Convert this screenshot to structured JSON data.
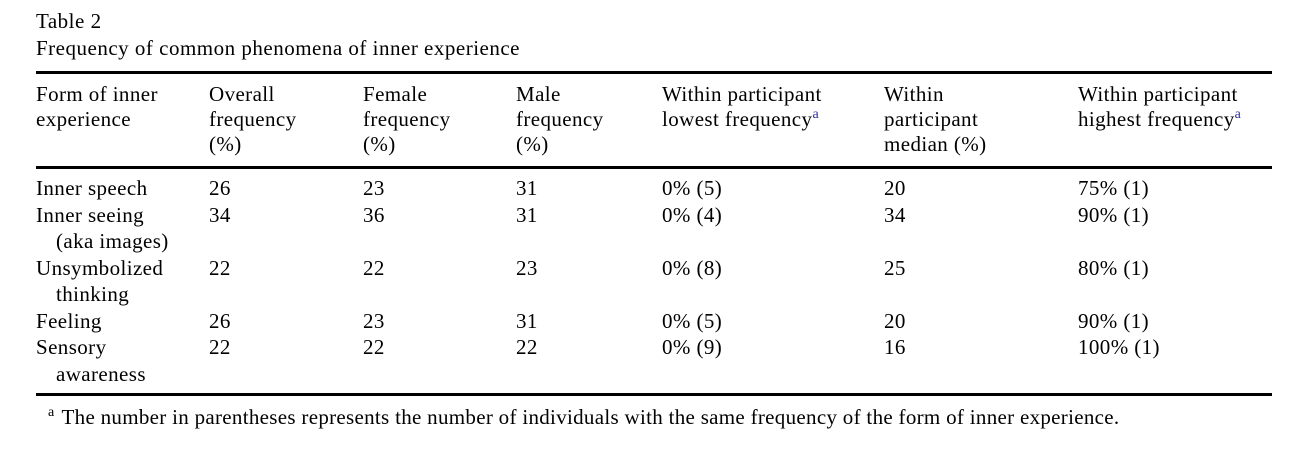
{
  "table": {
    "title": "Table 2",
    "caption": "Frequency of common phenomena of inner experience",
    "headers": [
      {
        "text": "Form of inner\nexperience",
        "sup": ""
      },
      {
        "text": "Overall\nfrequency\n(%)",
        "sup": ""
      },
      {
        "text": "Female\nfrequency\n(%)",
        "sup": ""
      },
      {
        "text": "Male\nfrequency\n(%)",
        "sup": ""
      },
      {
        "text": "Within participant\nlowest frequency",
        "sup": "a"
      },
      {
        "text": "Within\nparticipant\nmedian (%)",
        "sup": ""
      },
      {
        "text": "Within participant\nhighest frequency",
        "sup": "a"
      }
    ],
    "rows": [
      {
        "form_line1": "Inner speech",
        "form_line2": "",
        "cells": [
          "26",
          "23",
          "31",
          "0% (5)",
          "20",
          "75% (1)"
        ]
      },
      {
        "form_line1": "Inner seeing",
        "form_line2": "(aka images)",
        "cells": [
          "34",
          "36",
          "31",
          "0% (4)",
          "34",
          "90% (1)"
        ]
      },
      {
        "form_line1": "Unsymbolized",
        "form_line2": "thinking",
        "cells": [
          "22",
          "22",
          "23",
          "0% (8)",
          "25",
          "80% (1)"
        ]
      },
      {
        "form_line1": "Feeling",
        "form_line2": "",
        "cells": [
          "26",
          "23",
          "31",
          "0% (5)",
          "20",
          "90% (1)"
        ]
      },
      {
        "form_line1": "Sensory",
        "form_line2": "awareness",
        "cells": [
          "22",
          "22",
          "22",
          "0% (9)",
          "16",
          "100% (1)"
        ]
      }
    ],
    "footnote": {
      "marker": "a",
      "text": "The number in parentheses represents the number of individuals with the same frequency of the form of inner experience."
    }
  },
  "colors": {
    "text": "#000000",
    "rule": "#000000",
    "background": "#ffffff",
    "superscript_marker": "#2d2da6"
  }
}
